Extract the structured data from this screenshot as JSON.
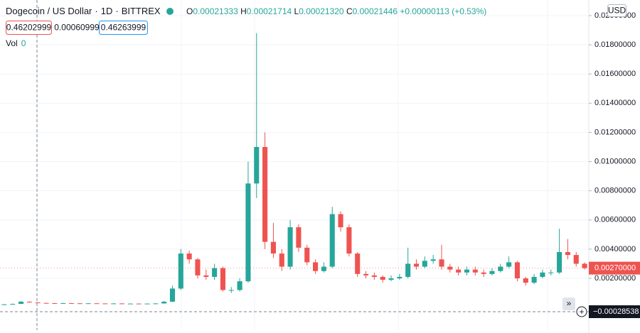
{
  "chart_data": {
    "type": "candlestick",
    "title": "Dogecoin / US Dollar",
    "interval": "1D",
    "exchange": "BITTREX",
    "currency": "USD",
    "legend": [
      {
        "key": "O",
        "value": "0.00021333"
      },
      {
        "key": "H",
        "value": "0.00021714"
      },
      {
        "key": "L",
        "value": "0.00021320"
      },
      {
        "key": "C",
        "value": "0.00021446"
      }
    ],
    "legend_change": "+0.00000113 (+0.53%)",
    "up_color": "#26a69a",
    "down_color": "#ef5350",
    "grid": true,
    "ylim": [
      -0.00155,
      0.02107
    ],
    "yticks": [
      {
        "value": 0.002,
        "label": "0.00200000"
      },
      {
        "value": 0.004,
        "label": "0.00400000"
      },
      {
        "value": 0.006,
        "label": "0.00600000"
      },
      {
        "value": 0.008,
        "label": "0.00800000"
      },
      {
        "value": 0.01,
        "label": "0.01000000"
      },
      {
        "value": 0.012,
        "label": "0.01200000"
      },
      {
        "value": 0.014,
        "label": "0.01400000"
      },
      {
        "value": 0.016,
        "label": "0.01600000"
      },
      {
        "value": 0.018,
        "label": "0.01800000"
      },
      {
        "value": 0.02,
        "label": "0.02000000"
      }
    ],
    "last_price": {
      "value": 0.0027,
      "label": "0.00270000"
    },
    "crosshair": {
      "value": -0.00028538,
      "label": "−0.00028538"
    },
    "categories": [
      null,
      null,
      null,
      null,
      null,
      null,
      null,
      null,
      null,
      null,
      null,
      null,
      null,
      null,
      null,
      null,
      null,
      null,
      null,
      null,
      null,
      null,
      null,
      null,
      null,
      null,
      null,
      null,
      null,
      null,
      null,
      null,
      null,
      null,
      null,
      null,
      null,
      null,
      null,
      null,
      null,
      null,
      null,
      null,
      null,
      null,
      null,
      null,
      null,
      null,
      null,
      null,
      null,
      null,
      null,
      null,
      null,
      null,
      null,
      null,
      null,
      null,
      null,
      null,
      null,
      null,
      null,
      null,
      null,
      null
    ],
    "open": [
      0.0002,
      0.00022,
      0.00025,
      0.0004,
      0.00035,
      0.00031,
      0.0003,
      0.00029,
      0.0003,
      0.00029,
      0.00028,
      0.00029,
      0.00028,
      0.00027,
      0.00028,
      0.00027,
      0.00027,
      0.00026,
      0.00027,
      0.00028,
      0.0004,
      0.0013,
      0.0037,
      0.0033,
      0.0022,
      0.0021,
      0.0027,
      0.0012,
      0.0012,
      0.0018,
      0.0085,
      0.011,
      0.0045,
      0.0037,
      0.0028,
      0.0055,
      0.0041,
      0.0031,
      0.0025,
      0.0028,
      0.0064,
      0.0055,
      0.0037,
      0.0023,
      0.0022,
      0.0021,
      0.0019,
      0.002,
      0.0021,
      0.003,
      0.0028,
      0.0032,
      0.0033,
      0.0028,
      0.0026,
      0.0024,
      0.0026,
      0.0024,
      0.0023,
      0.0025,
      0.0028,
      0.0031,
      0.002,
      0.0017,
      0.0021,
      0.0024,
      0.0024,
      0.0038,
      0.0036,
      0.003
    ],
    "high": [
      0.00024,
      0.00027,
      0.00045,
      0.00042,
      0.00036,
      0.00033,
      0.00032,
      0.00032,
      0.00031,
      0.0003,
      0.0003,
      0.0003,
      0.00029,
      0.00029,
      0.00029,
      0.00028,
      0.00028,
      0.00028,
      0.0003,
      0.00045,
      0.0015,
      0.004,
      0.0039,
      0.0034,
      0.0026,
      0.003,
      0.0028,
      0.0014,
      0.002,
      0.01,
      0.0188,
      0.012,
      0.0058,
      0.004,
      0.006,
      0.0057,
      0.0043,
      0.0033,
      0.0031,
      0.0069,
      0.0066,
      0.0057,
      0.0038,
      0.0025,
      0.0024,
      0.0022,
      0.0022,
      0.0023,
      0.0041,
      0.0033,
      0.0035,
      0.0036,
      0.0043,
      0.003,
      0.0028,
      0.0028,
      0.0028,
      0.0026,
      0.0027,
      0.003,
      0.0035,
      0.0032,
      0.0021,
      0.0023,
      0.0026,
      0.0026,
      0.0054,
      0.0047,
      0.0038,
      0.0031
    ],
    "low": [
      0.00019,
      0.0002,
      0.00024,
      0.00033,
      0.0003,
      0.00029,
      0.00028,
      0.00028,
      0.00028,
      0.00027,
      0.00027,
      0.00027,
      0.00026,
      0.00026,
      0.00026,
      0.00025,
      0.00025,
      0.00025,
      0.00026,
      0.00027,
      0.00038,
      0.0012,
      0.003,
      0.002,
      0.0019,
      0.0019,
      0.0011,
      0.001,
      0.0011,
      0.0017,
      0.0075,
      0.004,
      0.0034,
      0.0025,
      0.0026,
      0.0038,
      0.0029,
      0.0023,
      0.0024,
      0.0027,
      0.0052,
      0.0035,
      0.0021,
      0.002,
      0.0019,
      0.0017,
      0.0018,
      0.0019,
      0.002,
      0.0026,
      0.0027,
      0.003,
      0.0026,
      0.0024,
      0.0022,
      0.0022,
      0.0022,
      0.0021,
      0.0022,
      0.0024,
      0.0027,
      0.0018,
      0.0015,
      0.0016,
      0.002,
      0.0022,
      0.0023,
      0.0033,
      0.0028,
      0.0026
    ],
    "close": [
      0.00022,
      0.00025,
      0.0004,
      0.00035,
      0.00031,
      0.0003,
      0.00029,
      0.0003,
      0.00029,
      0.00028,
      0.00029,
      0.00028,
      0.00027,
      0.00028,
      0.00027,
      0.00027,
      0.00026,
      0.00027,
      0.00028,
      0.0004,
      0.0013,
      0.0037,
      0.0033,
      0.0022,
      0.0021,
      0.0027,
      0.0012,
      0.0012,
      0.0018,
      0.0085,
      0.011,
      0.0045,
      0.0037,
      0.0028,
      0.0055,
      0.0041,
      0.0031,
      0.0025,
      0.0028,
      0.0064,
      0.0055,
      0.0037,
      0.0023,
      0.0022,
      0.0021,
      0.0019,
      0.002,
      0.0021,
      0.003,
      0.0028,
      0.0032,
      0.0033,
      0.0028,
      0.0026,
      0.0024,
      0.0026,
      0.0024,
      0.0023,
      0.0025,
      0.0028,
      0.0031,
      0.002,
      0.0017,
      0.0021,
      0.0024,
      0.0024,
      0.0038,
      0.0036,
      0.003,
      0.0027
    ]
  },
  "trade": {
    "sell": "0.46202999",
    "spread": "0.00060999",
    "buy": "0.46263999"
  },
  "volume": {
    "label": "Vol",
    "value": "0"
  }
}
